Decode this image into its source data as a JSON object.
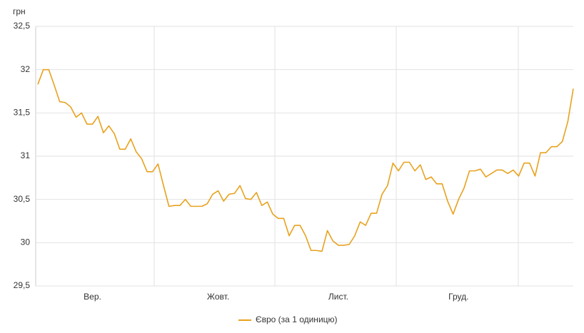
{
  "chart_data": {
    "type": "line",
    "y_label": "грн",
    "categories": [
      null,
      null,
      null,
      null,
      null,
      null,
      null,
      null,
      null,
      null,
      "Вер.",
      null,
      null,
      null,
      null,
      null,
      null,
      null,
      null,
      null,
      null,
      null,
      null,
      null,
      null,
      null,
      null,
      null,
      null,
      null,
      null,
      null,
      null,
      "Жовт.",
      null,
      null,
      null,
      null,
      null,
      null,
      null,
      null,
      null,
      null,
      null,
      null,
      null,
      null,
      null,
      null,
      null,
      null,
      null,
      null,
      null,
      "Лист.",
      null,
      null,
      null,
      null,
      null,
      null,
      null,
      null,
      null,
      null,
      null,
      null,
      null,
      null,
      null,
      null,
      null,
      null,
      null,
      null,
      null,
      "Груд.",
      null,
      null,
      null,
      null,
      null,
      null,
      null,
      null,
      null,
      null,
      null,
      null,
      null,
      null,
      null,
      null,
      null,
      null,
      null,
      null,
      null
    ],
    "series": [
      {
        "name": "Євро (за 1 одиницю)",
        "color": "#e8a21e",
        "values": [
          31.83,
          32.0,
          32.0,
          31.82,
          31.63,
          31.62,
          31.57,
          31.45,
          31.5,
          31.37,
          31.37,
          31.46,
          31.27,
          31.35,
          31.26,
          31.08,
          31.08,
          31.2,
          31.05,
          30.97,
          30.82,
          30.82,
          30.91,
          30.66,
          30.42,
          30.43,
          30.43,
          30.5,
          30.42,
          30.42,
          30.42,
          30.45,
          30.56,
          30.6,
          30.48,
          30.56,
          30.57,
          30.66,
          30.51,
          30.5,
          30.58,
          30.43,
          30.47,
          30.33,
          30.28,
          30.28,
          30.08,
          30.2,
          30.2,
          30.08,
          29.91,
          29.91,
          29.9,
          30.14,
          30.02,
          29.97,
          29.97,
          29.98,
          30.08,
          30.24,
          30.2,
          30.34,
          30.34,
          30.56,
          30.66,
          30.92,
          30.83,
          30.93,
          30.93,
          30.83,
          30.9,
          30.73,
          30.76,
          30.68,
          30.68,
          30.48,
          30.33,
          30.5,
          30.63,
          30.83,
          30.83,
          30.85,
          30.76,
          30.8,
          30.84,
          30.84,
          30.8,
          30.84,
          30.77,
          30.92,
          30.92,
          30.77,
          31.04,
          31.04,
          31.11,
          31.11,
          31.17,
          31.4,
          31.78
        ]
      }
    ],
    "ylim": [
      29.5,
      32.5
    ],
    "yticks": [
      {
        "value": 29.5,
        "label": "29,5"
      },
      30,
      {
        "value": 30.5,
        "label": "30,5"
      },
      31,
      {
        "value": 31.5,
        "label": "31,5"
      },
      32,
      {
        "value": 32.5,
        "label": "32,5"
      }
    ],
    "grid": true
  }
}
